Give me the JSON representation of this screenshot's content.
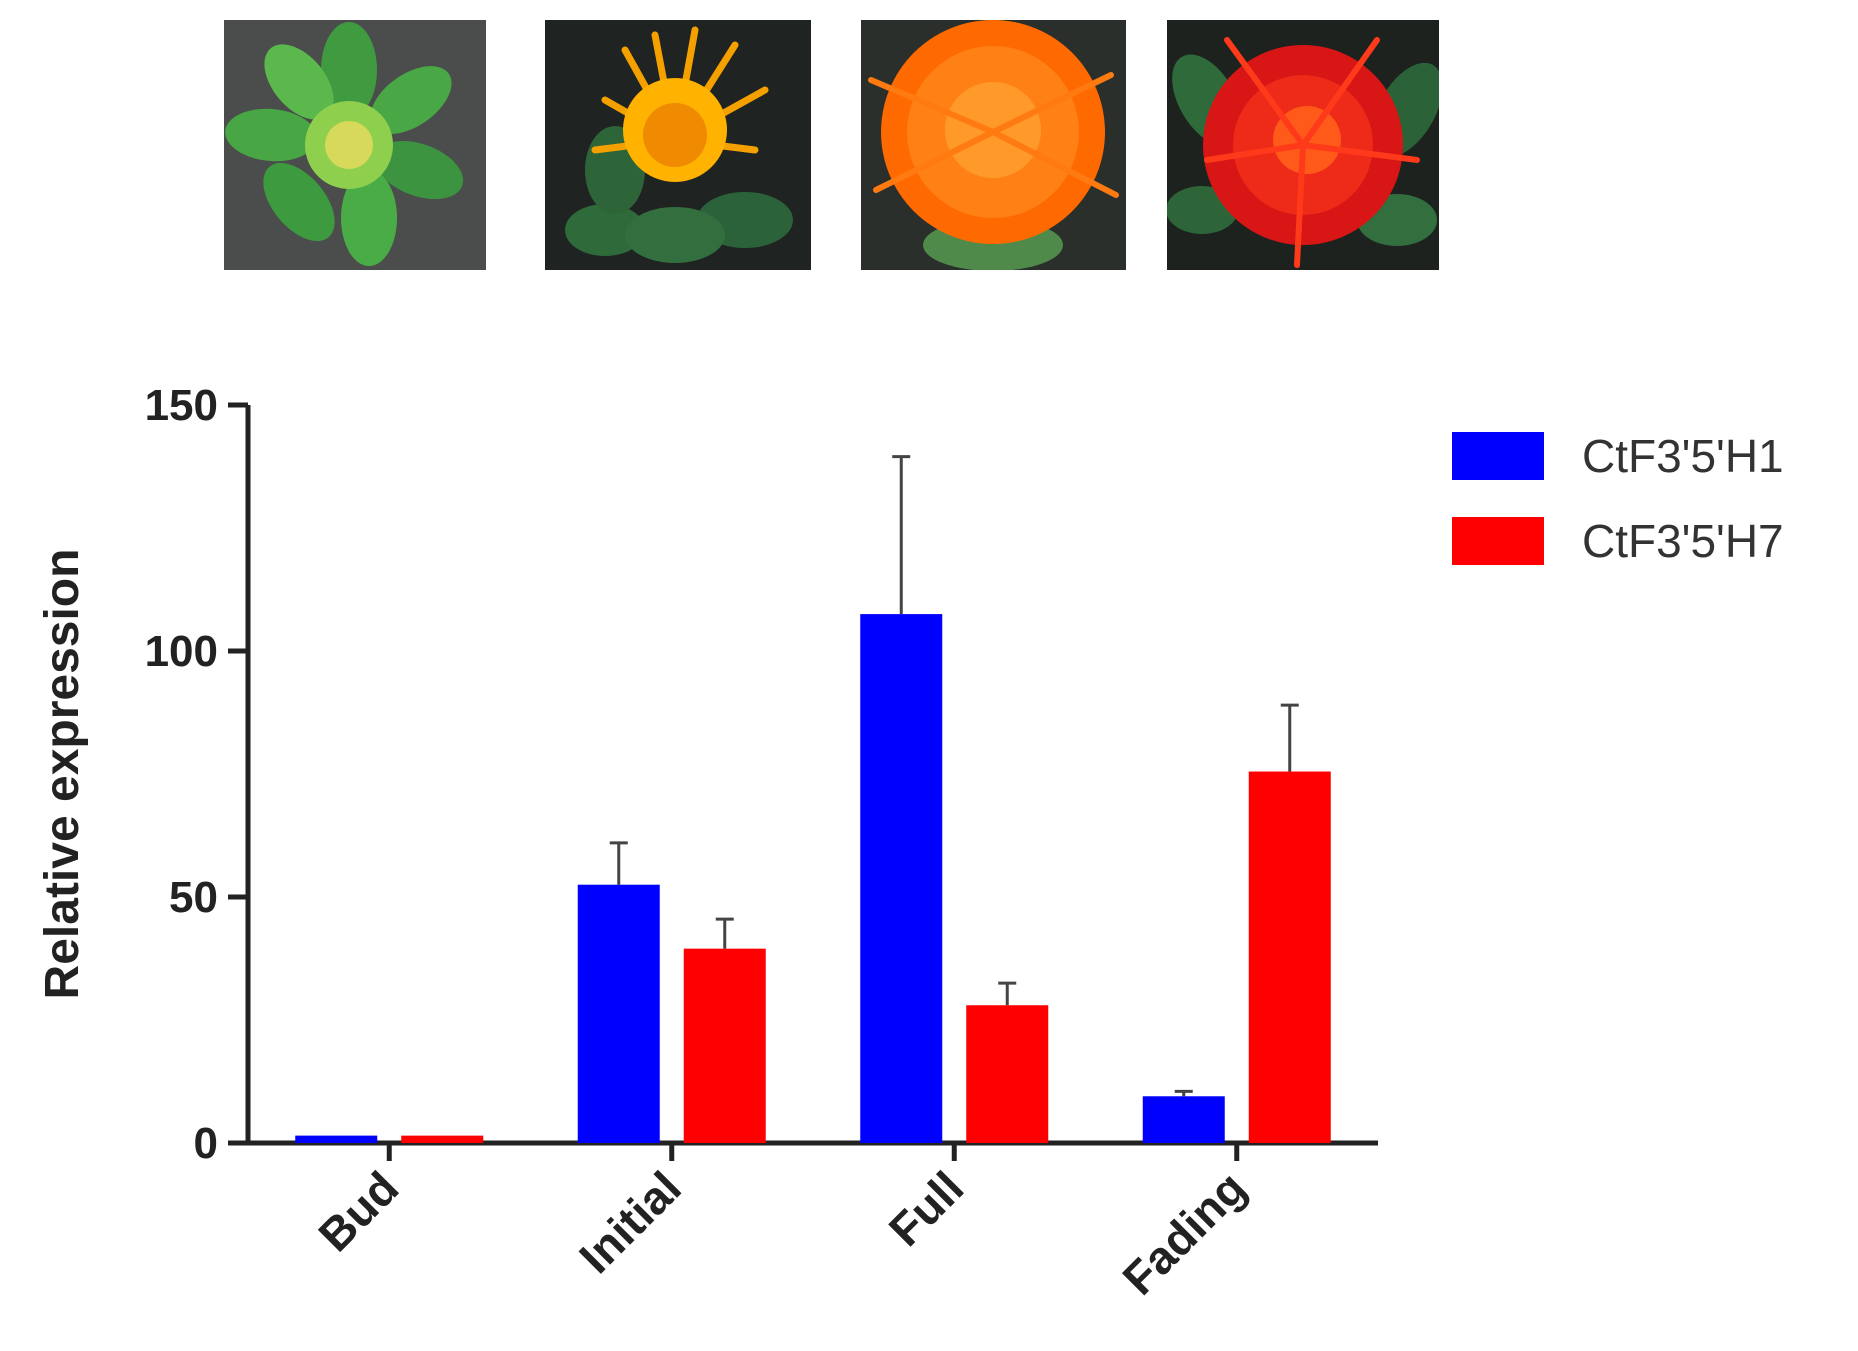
{
  "photos": [
    {
      "stage": "Bud",
      "icon": "green-bud-flower-photo",
      "colors": [
        "#3c9a3c",
        "#6cc04a",
        "#d8d85a"
      ]
    },
    {
      "stage": "Initial",
      "icon": "yellow-orange-flower-photo",
      "colors": [
        "#2f6a3a",
        "#f4a100",
        "#ffb300"
      ]
    },
    {
      "stage": "Full",
      "icon": "orange-flower-photo",
      "colors": [
        "#2f6a3a",
        "#ff6a00",
        "#ff8c1a"
      ]
    },
    {
      "stage": "Fading",
      "icon": "red-flower-photo",
      "colors": [
        "#2f6a3a",
        "#e01818",
        "#ff4a1a"
      ]
    }
  ],
  "chart_data": {
    "type": "bar",
    "categories": [
      "Bud",
      "Initial",
      "Full",
      "Fading"
    ],
    "series": [
      {
        "name": "CtF3'5'H1",
        "color": "#0000ff",
        "values": [
          1.5,
          52.5,
          107.5,
          9.5
        ],
        "errors": [
          0,
          8.5,
          32,
          1
        ]
      },
      {
        "name": "CtF3'5'H7",
        "color": "#ff0000",
        "values": [
          1.5,
          39.5,
          28,
          75.5
        ],
        "errors": [
          0,
          6,
          4.5,
          13.5
        ]
      }
    ],
    "ylabel": "Relative expression",
    "xlabel": "",
    "ylim": [
      0,
      150
    ],
    "yticks": [
      0,
      50,
      100,
      150
    ],
    "grid": false,
    "legend_position": "right"
  }
}
